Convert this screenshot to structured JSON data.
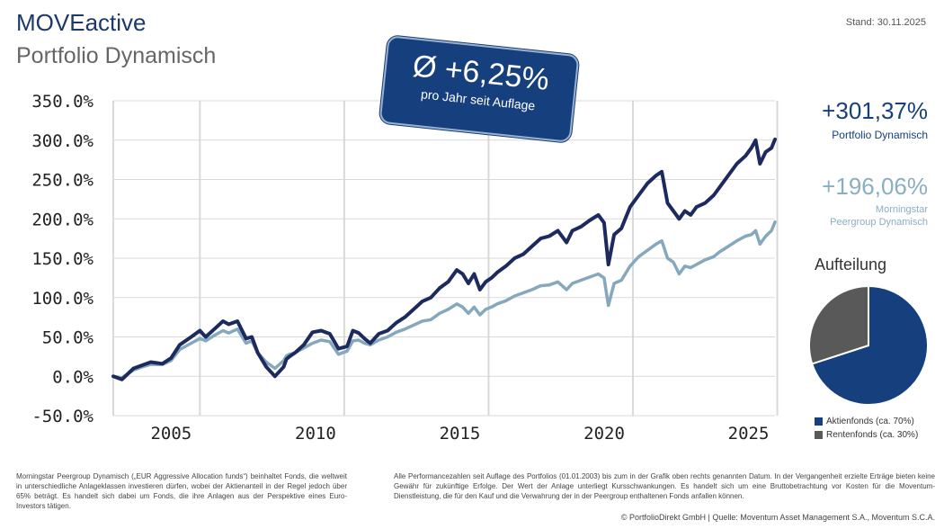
{
  "header": {
    "brand": "MOVEactive",
    "subtitle": "Portfolio Dynamisch",
    "date": "Stand: 30.11.2025"
  },
  "badge": {
    "value": "Ø +6,25%",
    "label": "pro Jahr seit Auflage"
  },
  "returns": {
    "portfolio_value": "+301,37%",
    "portfolio_label": "Portfolio Dynamisch",
    "peer_value": "+196,06%",
    "peer_label_1": "Morningstar",
    "peer_label_2": "Peergroup Dynamisch"
  },
  "allocation": {
    "title": "Aufteilung",
    "items": [
      {
        "label": "Aktienfonds (ca. 70%)",
        "value": 70,
        "color": "#163f7d"
      },
      {
        "label": "Rentenfonds (ca. 30%)",
        "value": 30,
        "color": "#595959"
      }
    ]
  },
  "footer": {
    "left": "Morningstar Peergroup Dynamisch („EUR Aggressive Allocation funds“) beinhaltet Fonds, die weltweit in unterschiedliche Anlageklassen investieren dürfen, wobei der Aktienanteil in der Regel jedoch über 65% beträgt. Es handelt sich dabei um Fonds, die ihre Anlagen aus der Perspektive eines Euro-Investors tätigen.",
    "right": "Alle Performancezahlen seit Auflage des Portfolios (01.01.2003) bis zum in der Grafik oben rechts genannten Datum. In der Vergangenheit erzielte Erträge bieten keine Gewähr für zukünftige Erfolge. Der Wert der Anlage unterliegt Kursschwankungen. Es handelt sich um eine Bruttobetrachtung vor Kosten für die Moventum-Dienstleistung, die für den Kauf und die Verwahrung der in der Peergroup enthaltenen Fonds anfallen können.",
    "copyright": "© PortfolioDirekt GmbH | Quelle: Moventum Asset Management S.A., Moventum S.C.A."
  },
  "chart_data": {
    "type": "line",
    "ylim": [
      -50,
      350
    ],
    "xlim": [
      2003,
      2025.92
    ],
    "y_ticks": [
      "-50.0%",
      "0.0%",
      "50.0%",
      "100.0%",
      "150.0%",
      "200.0%",
      "250.0%",
      "300.0%",
      "350.0%"
    ],
    "y_tick_values": [
      -50,
      0,
      50,
      100,
      150,
      200,
      250,
      300,
      350
    ],
    "x_ticks": [
      "2005",
      "2010",
      "2015",
      "2020",
      "2025"
    ],
    "x_tick_values": [
      2006,
      2011,
      2016,
      2021,
      2026
    ],
    "grid": true,
    "series": [
      {
        "color": "#1c2a5e",
        "x": [
          2003.0,
          2003.3,
          2003.7,
          2004.0,
          2004.3,
          2004.7,
          2005.0,
          2005.3,
          2005.7,
          2006.0,
          2006.2,
          2006.5,
          2006.8,
          2007.0,
          2007.3,
          2007.6,
          2007.8,
          2008.0,
          2008.3,
          2008.6,
          2008.9,
          2009.0,
          2009.1,
          2009.3,
          2009.6,
          2009.9,
          2010.2,
          2010.5,
          2010.8,
          2011.1,
          2011.3,
          2011.5,
          2011.7,
          2011.9,
          2012.2,
          2012.5,
          2012.8,
          2013.1,
          2013.4,
          2013.7,
          2014.0,
          2014.3,
          2014.6,
          2014.9,
          2015.1,
          2015.3,
          2015.5,
          2015.7,
          2015.9,
          2016.1,
          2016.3,
          2016.6,
          2016.9,
          2017.2,
          2017.5,
          2017.8,
          2018.1,
          2018.4,
          2018.7,
          2018.9,
          2019.2,
          2019.5,
          2019.8,
          2020.0,
          2020.15,
          2020.35,
          2020.6,
          2020.9,
          2021.2,
          2021.5,
          2021.8,
          2022.0,
          2022.2,
          2022.4,
          2022.6,
          2022.8,
          2023.0,
          2023.2,
          2023.5,
          2023.8,
          2024.0,
          2024.3,
          2024.6,
          2024.9,
          2025.1,
          2025.25,
          2025.4,
          2025.6,
          2025.8,
          2025.92
        ],
        "y": [
          0,
          -4,
          10,
          14,
          18,
          16,
          23,
          40,
          50,
          58,
          50,
          60,
          70,
          66,
          70,
          48,
          50,
          30,
          12,
          0,
          12,
          22,
          25,
          30,
          40,
          56,
          58,
          54,
          35,
          38,
          58,
          55,
          48,
          42,
          54,
          58,
          68,
          75,
          85,
          95,
          100,
          112,
          120,
          135,
          130,
          118,
          130,
          110,
          120,
          125,
          132,
          140,
          150,
          155,
          165,
          175,
          178,
          185,
          170,
          185,
          190,
          198,
          205,
          195,
          142,
          180,
          188,
          215,
          230,
          245,
          255,
          260,
          220,
          210,
          200,
          210,
          205,
          215,
          220,
          230,
          240,
          255,
          270,
          280,
          290,
          300,
          270,
          285,
          290,
          301
        ]
      },
      {
        "color": "#86a8bd",
        "x": [
          2003.0,
          2003.3,
          2003.7,
          2004.0,
          2004.3,
          2004.7,
          2005.0,
          2005.3,
          2005.7,
          2006.0,
          2006.2,
          2006.5,
          2006.8,
          2007.0,
          2007.3,
          2007.6,
          2007.8,
          2008.0,
          2008.3,
          2008.6,
          2008.9,
          2009.0,
          2009.1,
          2009.3,
          2009.6,
          2009.9,
          2010.2,
          2010.5,
          2010.8,
          2011.1,
          2011.3,
          2011.5,
          2011.7,
          2011.9,
          2012.2,
          2012.5,
          2012.8,
          2013.1,
          2013.4,
          2013.7,
          2014.0,
          2014.3,
          2014.6,
          2014.9,
          2015.1,
          2015.3,
          2015.5,
          2015.7,
          2015.9,
          2016.1,
          2016.3,
          2016.6,
          2016.9,
          2017.2,
          2017.5,
          2017.8,
          2018.1,
          2018.4,
          2018.7,
          2018.9,
          2019.2,
          2019.5,
          2019.8,
          2020.0,
          2020.15,
          2020.35,
          2020.6,
          2020.9,
          2021.2,
          2021.5,
          2021.8,
          2022.0,
          2022.2,
          2022.4,
          2022.6,
          2022.8,
          2023.0,
          2023.2,
          2023.5,
          2023.8,
          2024.0,
          2024.3,
          2024.6,
          2024.9,
          2025.1,
          2025.25,
          2025.4,
          2025.6,
          2025.8,
          2025.92
        ],
        "y": [
          0,
          -2,
          8,
          12,
          15,
          15,
          20,
          34,
          42,
          48,
          45,
          52,
          58,
          55,
          60,
          42,
          45,
          30,
          18,
          10,
          20,
          26,
          28,
          30,
          36,
          42,
          46,
          44,
          28,
          32,
          45,
          46,
          42,
          40,
          46,
          50,
          56,
          60,
          65,
          70,
          72,
          80,
          85,
          92,
          88,
          80,
          88,
          78,
          85,
          88,
          92,
          96,
          102,
          106,
          110,
          115,
          116,
          120,
          110,
          118,
          122,
          126,
          130,
          125,
          90,
          118,
          122,
          140,
          152,
          160,
          168,
          172,
          150,
          145,
          130,
          140,
          138,
          142,
          148,
          152,
          158,
          165,
          172,
          178,
          180,
          185,
          168,
          178,
          185,
          196
        ]
      }
    ]
  }
}
